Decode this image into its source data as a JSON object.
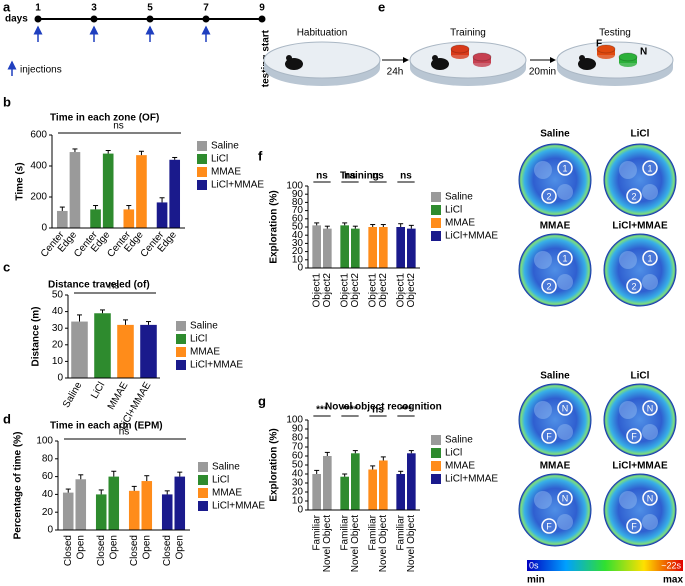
{
  "panels": [
    "a",
    "b",
    "c",
    "d",
    "e",
    "f",
    "g"
  ],
  "timeline": {
    "label": "days",
    "days": [
      1,
      3,
      5,
      7,
      9
    ],
    "injection_days": [
      1,
      3,
      5,
      7
    ],
    "injections": "injections",
    "end": "testing start"
  },
  "diagram": {
    "stages": [
      "Habituation",
      "Training",
      "Testing"
    ],
    "intervals": [
      "24h",
      "20min"
    ],
    "objects": [
      "F",
      "N"
    ]
  },
  "heatmaps": {
    "training": {
      "groups": [
        "Saline",
        "LiCl",
        "MMAE",
        "LiCl+MMAE"
      ],
      "markers": [
        "1",
        "2"
      ]
    },
    "testing": {
      "groups": [
        "Saline",
        "LiCl",
        "MMAE",
        "LiCl+MMAE"
      ],
      "markers": [
        "N",
        "F"
      ]
    },
    "colorbar": {
      "min_label": "0s",
      "max_label": "~22s",
      "low": "min",
      "high": "max"
    }
  },
  "chart_data": [
    {
      "type": "bar",
      "title": "Time in each zone (OF)",
      "ylabel": "Time (s)",
      "categories": [
        "Center",
        "Edge"
      ],
      "series": [
        {
          "name": "Saline",
          "color": "#9a9a9a",
          "values": [
            110,
            490
          ],
          "errors": [
            25,
            20
          ]
        },
        {
          "name": "LiCl",
          "color": "#2e8b2e",
          "values": [
            120,
            480
          ],
          "errors": [
            25,
            20
          ]
        },
        {
          "name": "MMAE",
          "color": "#ff8c1a",
          "values": [
            120,
            470
          ],
          "errors": [
            25,
            25
          ]
        },
        {
          "name": "LiCl+MMAE",
          "color": "#1a1a8c",
          "values": [
            165,
            440
          ],
          "errors": [
            30,
            15
          ]
        }
      ],
      "ylim": [
        0,
        600
      ],
      "yticks": [
        0,
        200,
        400,
        600
      ],
      "annotation": "ns"
    },
    {
      "type": "bar",
      "title": "Distance traveled (of)",
      "ylabel": "Distance (m)",
      "categories": [
        "Saline",
        "LiCl",
        "MMAE",
        "LiCl+MMAE"
      ],
      "values": [
        34,
        39,
        32,
        32
      ],
      "errors": [
        4,
        2,
        3,
        2
      ],
      "colors": [
        "#9a9a9a",
        "#2e8b2e",
        "#ff8c1a",
        "#1a1a8c"
      ],
      "ylim": [
        0,
        50
      ],
      "yticks": [
        0,
        10,
        20,
        30,
        40,
        50
      ],
      "annotation": "ns"
    },
    {
      "type": "bar",
      "title": "Time in each arm (EPM)",
      "ylabel": "Percentage of time (%)",
      "categories": [
        "Closed",
        "Open"
      ],
      "series": [
        {
          "name": "Saline",
          "color": "#9a9a9a",
          "values": [
            42,
            57
          ],
          "errors": [
            4,
            5
          ]
        },
        {
          "name": "LiCl",
          "color": "#2e8b2e",
          "values": [
            40,
            60
          ],
          "errors": [
            5,
            6
          ]
        },
        {
          "name": "MMAE",
          "color": "#ff8c1a",
          "values": [
            44,
            55
          ],
          "errors": [
            5,
            6
          ]
        },
        {
          "name": "LiCl+MMAE",
          "color": "#1a1a8c",
          "values": [
            40,
            60
          ],
          "errors": [
            4,
            5
          ]
        }
      ],
      "ylim": [
        0,
        100
      ],
      "yticks": [
        0,
        20,
        40,
        60,
        80,
        100
      ],
      "annotation": "ns"
    },
    {
      "type": "bar",
      "title": "Training",
      "ylabel": "Exploration (%)",
      "categories": [
        "Object1",
        "Object2"
      ],
      "series": [
        {
          "name": "Saline",
          "color": "#9a9a9a",
          "values": [
            52,
            48
          ],
          "errors": [
            3,
            3
          ]
        },
        {
          "name": "LiCl",
          "color": "#2e8b2e",
          "values": [
            52,
            48
          ],
          "errors": [
            3,
            3
          ]
        },
        {
          "name": "MMAE",
          "color": "#ff8c1a",
          "values": [
            50,
            50
          ],
          "errors": [
            3,
            3
          ]
        },
        {
          "name": "LiCl+MMAE",
          "color": "#1a1a8c",
          "values": [
            50,
            48
          ],
          "errors": [
            4,
            4
          ]
        }
      ],
      "ylim": [
        0,
        100
      ],
      "yticks": [
        0,
        10,
        20,
        30,
        40,
        50,
        60,
        70,
        80,
        90,
        100
      ],
      "annotations": [
        "ns",
        "ns",
        "ns",
        "ns"
      ]
    },
    {
      "type": "bar",
      "title": "Novel object recognition",
      "ylabel": "Exploration (%)",
      "categories": [
        "Familiar",
        "Novel Object"
      ],
      "series": [
        {
          "name": "Saline",
          "color": "#9a9a9a",
          "values": [
            40,
            60
          ],
          "errors": [
            4,
            4
          ]
        },
        {
          "name": "LiCl",
          "color": "#2e8b2e",
          "values": [
            37,
            63
          ],
          "errors": [
            3,
            3
          ]
        },
        {
          "name": "MMAE",
          "color": "#ff8c1a",
          "values": [
            45,
            55
          ],
          "errors": [
            4,
            4
          ]
        },
        {
          "name": "LiCl+MMAE",
          "color": "#1a1a8c",
          "values": [
            40,
            63
          ],
          "errors": [
            3,
            3
          ]
        }
      ],
      "ylim": [
        0,
        100
      ],
      "yticks": [
        0,
        10,
        20,
        30,
        40,
        50,
        60,
        70,
        80,
        90,
        100
      ],
      "annotations": [
        "***",
        "****",
        "ns",
        "***"
      ]
    }
  ]
}
